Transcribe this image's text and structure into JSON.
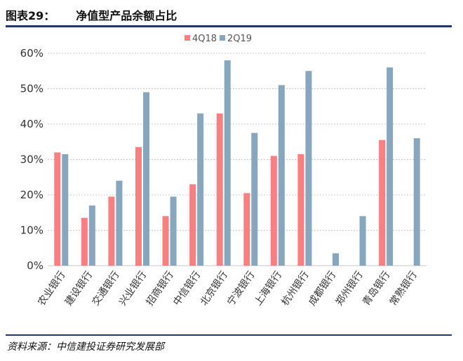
{
  "header": {
    "figure_no": "图表29：",
    "title": "净值型产品余额占比"
  },
  "source": "资料来源：中信建投证券研究发展部",
  "colors": {
    "series_1": "#f88080",
    "series_2": "#86a7bd",
    "grid": "#c8c8c8",
    "rule": "#1f3b63"
  },
  "chart_data": {
    "type": "bar",
    "title": "净值型产品余额占比",
    "xlabel": "",
    "ylabel": "",
    "ylim": [
      0,
      60
    ],
    "y_ticks": [
      "0%",
      "10%",
      "20%",
      "30%",
      "40%",
      "50%",
      "60%"
    ],
    "grid": true,
    "legend_position": "top-center",
    "categories": [
      "农业银行",
      "建设银行",
      "交通银行",
      "兴业银行",
      "招商银行",
      "中信银行",
      "北京银行",
      "宁波银行",
      "上海银行",
      "杭州银行",
      "成都银行",
      "郑州银行",
      "青岛银行",
      "常熟银行"
    ],
    "series": [
      {
        "name": "4Q18",
        "values": [
          32,
          13.5,
          19.5,
          33.5,
          14,
          23,
          43,
          20.5,
          31,
          31.5,
          null,
          null,
          35.5,
          null
        ]
      },
      {
        "name": "2Q19",
        "values": [
          31.5,
          17,
          24,
          49,
          19.5,
          43,
          58,
          37.5,
          51,
          55,
          3.5,
          14,
          56,
          36
        ]
      }
    ]
  }
}
